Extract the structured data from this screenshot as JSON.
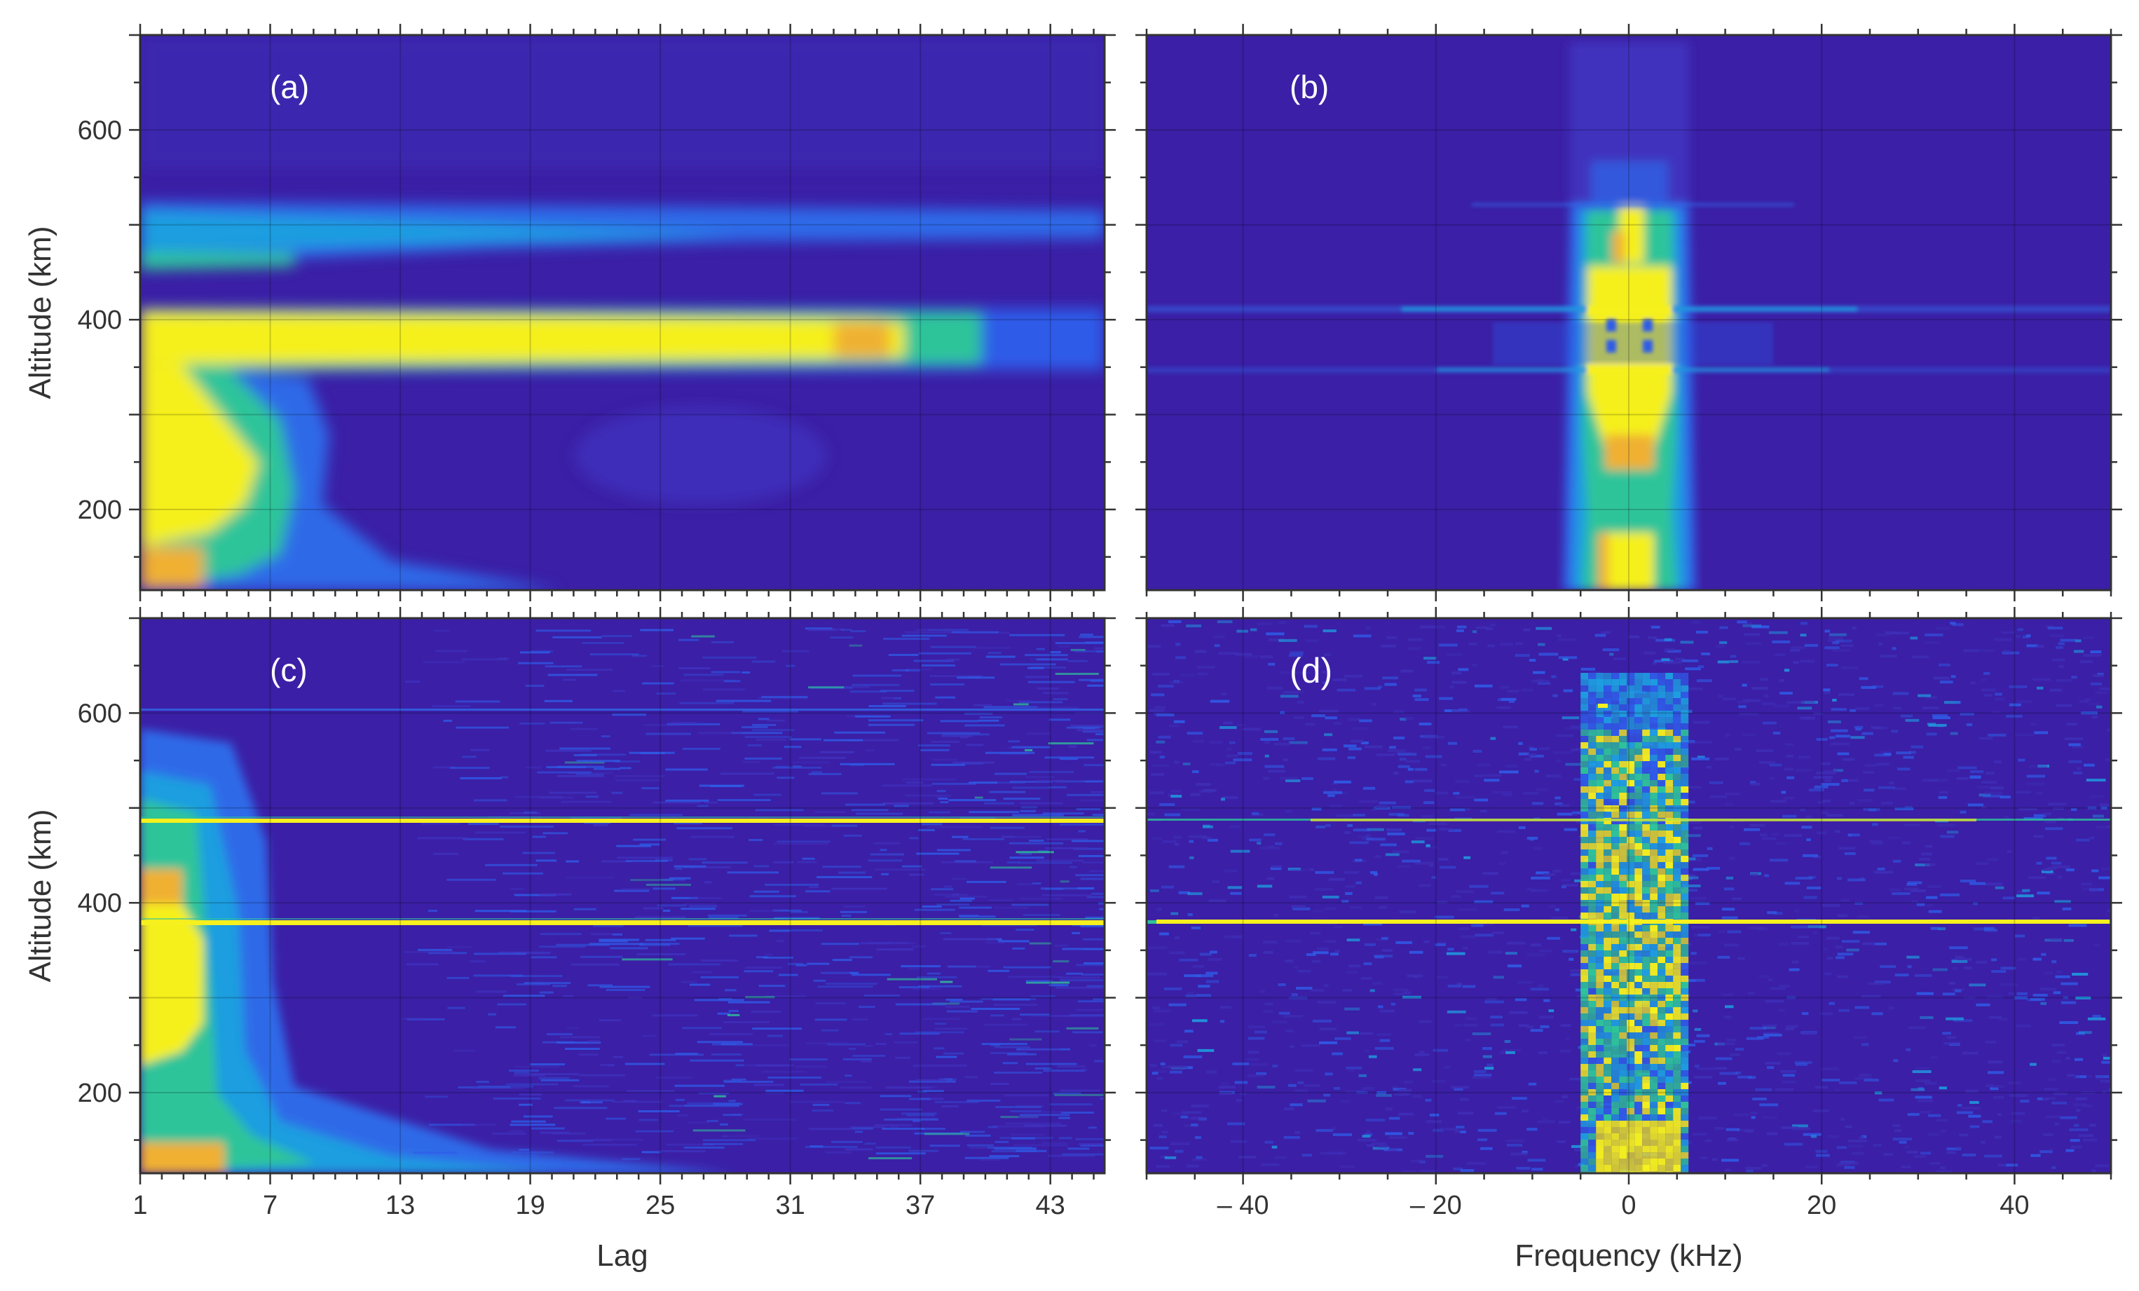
{
  "chart_data": [
    {
      "type": "heatmap",
      "panel_label": "(a)",
      "xlabel": "",
      "ylabel": "Altitude (km)",
      "x_range": [
        1,
        45.5
      ],
      "y_range": [
        115,
        700
      ],
      "x_ticks": [],
      "y_ticks": [
        "600",
        "400",
        "200"
      ],
      "y_tick_values": [
        600,
        400,
        200
      ],
      "grid": true,
      "colormap": "parula",
      "features": [
        {
          "kind": "bright band",
          "altitude_range": [
            350,
            415
          ],
          "lag_extent": [
            1,
            36
          ],
          "level": "high"
        },
        {
          "kind": "band",
          "altitude_range": [
            455,
            525
          ],
          "lag_extent": [
            1,
            45
          ],
          "level": "medium"
        },
        {
          "kind": "low-altitude region",
          "altitude_range": [
            115,
            350
          ],
          "lag_extent": [
            1,
            6
          ],
          "level": "high"
        }
      ]
    },
    {
      "type": "heatmap",
      "panel_label": "(b)",
      "xlabel": "",
      "ylabel": "",
      "x_range": [
        -50,
        50
      ],
      "y_range": [
        115,
        700
      ],
      "x_ticks": [],
      "y_ticks": [],
      "grid": true,
      "colormap": "parula",
      "features": [
        {
          "kind": "central column",
          "frequency_range": [
            -5,
            5
          ],
          "altitude_range": [
            115,
            525
          ],
          "level": "high"
        },
        {
          "kind": "horizontal lines",
          "altitudes": [
            400,
            350
          ],
          "level": "low"
        }
      ]
    },
    {
      "type": "heatmap",
      "panel_label": "(c)",
      "xlabel": "Lag",
      "ylabel": "Altitude (km)",
      "x_range": [
        1,
        45.5
      ],
      "y_range": [
        115,
        700
      ],
      "x_ticks": [
        "1",
        "7",
        "13",
        "19",
        "25",
        "31",
        "37",
        "43"
      ],
      "x_tick_values": [
        1,
        7,
        13,
        19,
        25,
        31,
        37,
        43
      ],
      "y_ticks": [
        "600",
        "400",
        "200"
      ],
      "y_tick_values": [
        600,
        400,
        200
      ],
      "grid": true,
      "colormap": "parula",
      "features": [
        {
          "kind": "thin bright line",
          "altitude": 487,
          "level": "high"
        },
        {
          "kind": "thin bright line",
          "altitude": 381,
          "level": "high"
        },
        {
          "kind": "thin faint line",
          "altitude": 605,
          "level": "low"
        }
      ]
    },
    {
      "type": "heatmap",
      "panel_label": "(d)",
      "xlabel": "Frequency (kHz)",
      "ylabel": "",
      "x_range": [
        -50,
        50
      ],
      "y_range": [
        115,
        700
      ],
      "x_ticks": [
        "– 40",
        "– 20",
        "0",
        "20",
        "40"
      ],
      "x_tick_values": [
        -40,
        -20,
        0,
        20,
        40
      ],
      "y_ticks": [],
      "grid": true,
      "colormap": "parula",
      "features": [
        {
          "kind": "noisy central column",
          "frequency_range": [
            -4,
            5
          ],
          "altitude_range": [
            115,
            600
          ],
          "level": "medium"
        },
        {
          "kind": "thin bright line",
          "altitude": 381,
          "level": "high"
        },
        {
          "kind": "thin line",
          "altitude": 487,
          "level": "medium"
        }
      ]
    }
  ],
  "colors": {
    "background": "#3b1fa6",
    "blue": "#2f5ce8",
    "cyan": "#1e9ee0",
    "green": "#2ec49a",
    "yellow": "#f5f01e",
    "orange": "#f0b030",
    "frame": "#333333"
  }
}
